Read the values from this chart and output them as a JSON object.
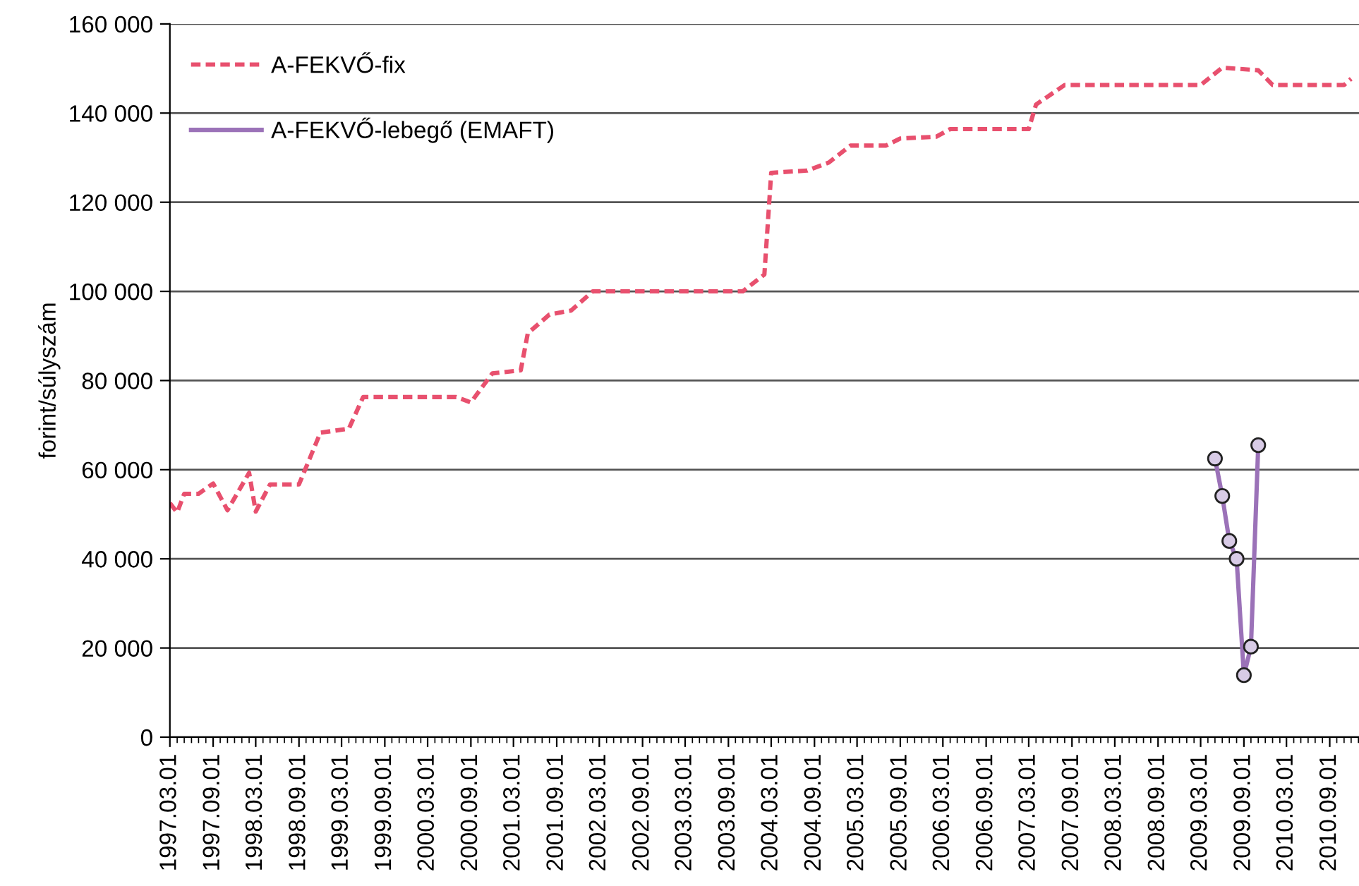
{
  "chart_data": {
    "type": "line",
    "ylabel": "forint/súlyszám",
    "grid": "y",
    "legend": "top left",
    "xlim": [
      "1997-03-01",
      "2011-01-15"
    ],
    "ylim": [
      0,
      160000
    ],
    "yticks": [
      {
        "value": 0,
        "label": "0"
      },
      {
        "value": 20000,
        "label": "20 000"
      },
      {
        "value": 40000,
        "label": "40 000"
      },
      {
        "value": 60000,
        "label": "60 000"
      },
      {
        "value": 80000,
        "label": "80 000"
      },
      {
        "value": 100000,
        "label": "100 000"
      },
      {
        "value": 120000,
        "label": "120 000"
      },
      {
        "value": 140000,
        "label": "140 000"
      },
      {
        "value": 160000,
        "label": "160 000"
      }
    ],
    "xticks": [
      {
        "value": "1997-03-01",
        "label": "1997.03.01"
      },
      {
        "value": "1997-09-01",
        "label": "1997.09.01"
      },
      {
        "value": "1998-03-01",
        "label": "1998.03.01"
      },
      {
        "value": "1998-09-01",
        "label": "1998.09.01"
      },
      {
        "value": "1999-03-01",
        "label": "1999.03.01"
      },
      {
        "value": "1999-09-01",
        "label": "1999.09.01"
      },
      {
        "value": "2000-03-01",
        "label": "2000.03.01"
      },
      {
        "value": "2000-09-01",
        "label": "2000.09.01"
      },
      {
        "value": "2001-03-01",
        "label": "2001.03.01"
      },
      {
        "value": "2001-09-01",
        "label": "2001.09.01"
      },
      {
        "value": "2002-03-01",
        "label": "2002.03.01"
      },
      {
        "value": "2002-09-01",
        "label": "2002.09.01"
      },
      {
        "value": "2003-03-01",
        "label": "2003.03.01"
      },
      {
        "value": "2003-09-01",
        "label": "2003.09.01"
      },
      {
        "value": "2004-03-01",
        "label": "2004.03.01"
      },
      {
        "value": "2004-09-01",
        "label": "2004.09.01"
      },
      {
        "value": "2005-03-01",
        "label": "2005.03.01"
      },
      {
        "value": "2005-09-01",
        "label": "2005.09.01"
      },
      {
        "value": "2006-03-01",
        "label": "2006.03.01"
      },
      {
        "value": "2006-09-01",
        "label": "2006.09.01"
      },
      {
        "value": "2007-03-01",
        "label": "2007.03.01"
      },
      {
        "value": "2007-09-01",
        "label": "2007.09.01"
      },
      {
        "value": "2008-03-01",
        "label": "2008.03.01"
      },
      {
        "value": "2008-09-01",
        "label": "2008.09.01"
      },
      {
        "value": "2009-03-01",
        "label": "2009.03.01"
      },
      {
        "value": "2009-09-01",
        "label": "2009.09.01"
      },
      {
        "value": "2010-03-01",
        "label": "2010.03.01"
      },
      {
        "value": "2010-09-01",
        "label": "2010.09.01"
      }
    ],
    "series": [
      {
        "name": "A-FEKVŐ-fix",
        "color": "#e8506e",
        "line_style": "dashed",
        "marker": "none",
        "x": [
          "1997-03",
          "1997-04",
          "1997-05",
          "1997-07",
          "1997-09",
          "1997-11",
          "1998-02",
          "1998-03",
          "1998-05",
          "1998-09",
          "1998-12",
          "1999-04",
          "1999-06",
          "2000-07",
          "2000-09",
          "2000-12",
          "2001-04",
          "2001-05",
          "2001-08",
          "2001-11",
          "2002-02",
          "2003-11",
          "2004-02",
          "2004-03",
          "2004-08",
          "2004-11",
          "2005-02",
          "2005-07",
          "2005-09",
          "2006-02",
          "2006-04",
          "2007-03",
          "2007-04",
          "2007-08",
          "2009-03",
          "2009-06",
          "2009-11",
          "2010-01",
          "2010-11",
          "2010-12"
        ],
        "values": [
          52500,
          50400,
          54600,
          54600,
          56900,
          50900,
          59300,
          50600,
          56700,
          56700,
          68300,
          69200,
          76300,
          76300,
          75100,
          81600,
          82300,
          90600,
          94800,
          95700,
          100000,
          100000,
          103800,
          126600,
          127100,
          128900,
          132700,
          132700,
          134300,
          134700,
          136400,
          136400,
          141900,
          146300,
          146300,
          150200,
          149600,
          146300,
          146300,
          147700
        ]
      },
      {
        "name": "A-FEKVŐ-lebegő (EMAFT)",
        "color": "#9b72b8",
        "line_style": "solid",
        "marker": "circle",
        "x": [
          "2009-05",
          "2009-06",
          "2009-07",
          "2009-08",
          "2009-09",
          "2009-10",
          "2009-11"
        ],
        "values": [
          62500,
          54100,
          44000,
          40000,
          13900,
          20300,
          65500
        ]
      }
    ]
  }
}
